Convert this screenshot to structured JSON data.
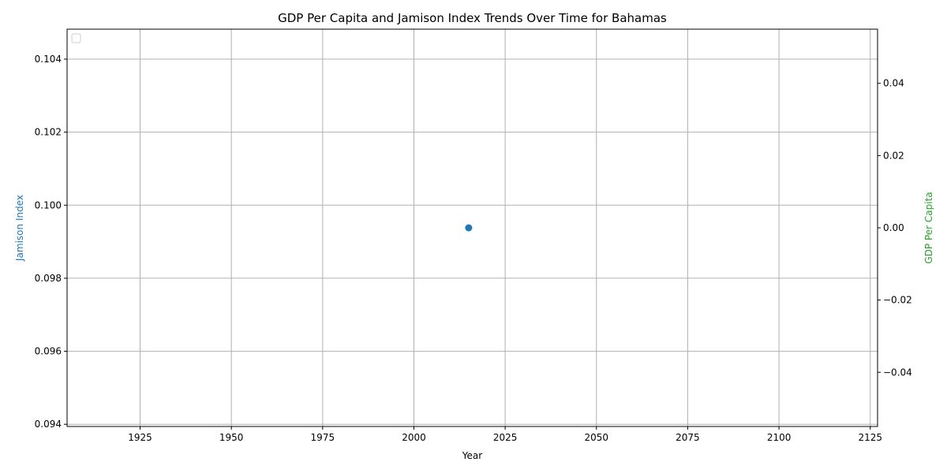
{
  "chart_data": {
    "type": "scatter",
    "title": "GDP Per Capita and Jamison Index Trends Over Time for Bahamas",
    "xlabel": "Year",
    "ylabel_left": "Jamison Index",
    "ylabel_right": "GDP Per Capita",
    "xlim": [
      1905,
      2127
    ],
    "ylim_left": [
      0.09394,
      0.10482
    ],
    "ylim_right": [
      -0.055,
      0.055
    ],
    "x_ticks": [
      1925,
      1950,
      1975,
      2000,
      2025,
      2050,
      2075,
      2100,
      2125
    ],
    "y_left_ticks": [
      "0.094",
      "0.096",
      "0.098",
      "0.100",
      "0.102",
      "0.104"
    ],
    "y_left_tick_values": [
      0.094,
      0.096,
      0.098,
      0.1,
      0.102,
      0.104
    ],
    "y_right_ticks": [
      "−0.04",
      "−0.02",
      "0.00",
      "0.02",
      "0.04"
    ],
    "y_right_tick_values": [
      -0.04,
      -0.02,
      0.0,
      0.02,
      0.04
    ],
    "grid": true,
    "legend_placement": "top-left",
    "legend_entries": [],
    "series": [
      {
        "axis": "left",
        "marker": "circle",
        "color": "#1f77b4",
        "x": [
          2015
        ],
        "y": [
          0.09938
        ]
      }
    ],
    "colors": {
      "left_axis_label": "#1f77b4",
      "right_axis_label": "#2ca02c",
      "grid": "#b0b0b0"
    }
  }
}
